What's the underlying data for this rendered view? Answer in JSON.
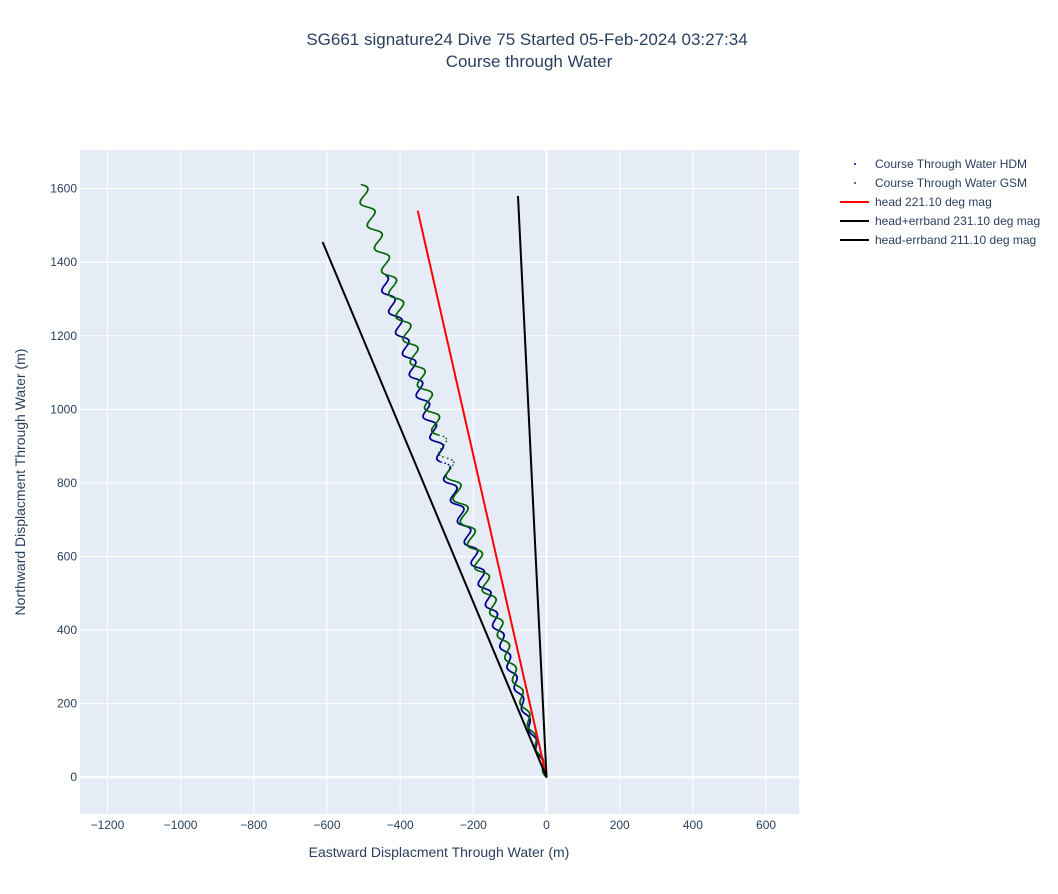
{
  "chart_data": {
    "type": "scatter",
    "title": "SG661 signature24 Dive 75 Started 05-Feb-2024 03:27:34",
    "subtitle": "Course through Water",
    "xlabel": "Eastward Displacment Through Water (m)",
    "ylabel": "Northward Displacment Through Water (m)",
    "xlim": [
      -1275,
      690
    ],
    "ylim": [
      -100,
      1705
    ],
    "xticks": [
      -1200,
      -1000,
      -800,
      -600,
      -400,
      -200,
      0,
      200,
      400,
      600
    ],
    "yticks": [
      0,
      200,
      400,
      600,
      800,
      1000,
      1200,
      1400,
      1600
    ],
    "xtick_labels": [
      "−1200",
      "−1000",
      "−800",
      "−600",
      "−400",
      "−200",
      "0",
      "200",
      "400",
      "600"
    ],
    "ytick_labels": [
      "0",
      "200",
      "400",
      "600",
      "800",
      "1000",
      "1200",
      "1400",
      "1600"
    ],
    "grid": true,
    "legend_position": "top-right outside",
    "series": [
      {
        "name": "Course Through Water HDM",
        "mode": "markers",
        "color": "#00008b",
        "start": [
          0,
          0
        ],
        "end": [
          -448,
          1360
        ],
        "wiggle_amplitude": 14,
        "wiggle_period": 60,
        "sparse_range": [
          840,
          860
        ]
      },
      {
        "name": "Course Through Water GSM",
        "mode": "markers",
        "color": "#006400",
        "start": [
          0,
          0
        ],
        "end": [
          -508,
          1610
        ],
        "wiggle_amplitude": 16,
        "wiggle_period": 65,
        "sparse_range": [
          840,
          930
        ]
      },
      {
        "name": "head 221.10 deg mag",
        "mode": "lines",
        "color": "#ff0000",
        "x": [
          0,
          -352
        ],
        "y": [
          0,
          1540
        ]
      },
      {
        "name": "head+errband 231.10 deg mag",
        "mode": "lines",
        "color": "#000000",
        "x": [
          0,
          -612
        ],
        "y": [
          0,
          1455
        ]
      },
      {
        "name": "head-errband 211.10 deg mag",
        "mode": "lines",
        "color": "#000000",
        "x": [
          0,
          -78
        ],
        "y": [
          0,
          1580
        ]
      }
    ]
  }
}
